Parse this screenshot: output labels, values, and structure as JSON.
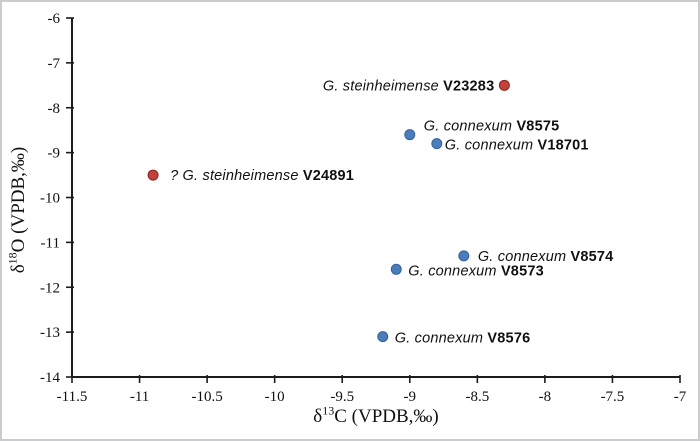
{
  "figure": {
    "background": "#ffffff",
    "border_color": "#c9cbcc"
  },
  "chart_data": {
    "type": "scatter",
    "title": "",
    "xlabel": "δ13C (VPDB,‰)",
    "ylabel": "δ18O (VPDB,‰)",
    "xlabel_parts": {
      "symbol": "δ",
      "sup": "13",
      "rest": "C (VPDB,‰)"
    },
    "ylabel_parts": {
      "symbol": "δ",
      "sup": "18",
      "rest": "O (VPDB,‰)"
    },
    "xlim": [
      -11.5,
      -7
    ],
    "ylim": [
      -14,
      -6
    ],
    "x_ticks": [
      -11.5,
      -11,
      -10.5,
      -10,
      -9.5,
      -9,
      -8.5,
      -8,
      -7.5,
      -7
    ],
    "y_ticks": [
      -6,
      -7,
      -8,
      -9,
      -10,
      -11,
      -12,
      -13,
      -14
    ],
    "grid": false,
    "legend": "none",
    "axis_color": "#1c1c1c",
    "text_color": "#111111",
    "series": [
      {
        "name": "G. steinheimense",
        "marker": {
          "fill": "#c2413a",
          "stroke": "#8e241d"
        },
        "points": [
          {
            "x": -8.3,
            "y": -7.5,
            "species": "G. steinheimense",
            "specimen": "V23283",
            "label_side": "left",
            "label_gap": 10,
            "label_dy": 5
          },
          {
            "x": -10.9,
            "y": -9.5,
            "species": "? G. steinheimense",
            "specimen": "V24891",
            "label_side": "right",
            "label_gap": 17,
            "label_dy": 5
          }
        ]
      },
      {
        "name": "G. connexum",
        "marker": {
          "fill": "#4a7ebb",
          "stroke": "#35619e"
        },
        "points": [
          {
            "x": -9.0,
            "y": -8.6,
            "species": "G. connexum",
            "specimen": "V8575",
            "label_side": "right",
            "label_gap": 14,
            "label_dy": -4
          },
          {
            "x": -8.8,
            "y": -8.8,
            "species": "G. connexum",
            "specimen": "V18701",
            "label_side": "right",
            "label_gap": 8,
            "label_dy": 6
          },
          {
            "x": -8.6,
            "y": -11.3,
            "species": "G. connexum",
            "specimen": "V8574",
            "label_side": "right",
            "label_gap": 14,
            "label_dy": 5
          },
          {
            "x": -9.1,
            "y": -11.6,
            "species": "G. connexum",
            "specimen": "V8573",
            "label_side": "right",
            "label_gap": 12,
            "label_dy": 6
          },
          {
            "x": -9.2,
            "y": -13.1,
            "species": "G. connexum",
            "specimen": "V8576",
            "label_side": "right",
            "label_gap": 12,
            "label_dy": 6
          }
        ]
      }
    ]
  }
}
